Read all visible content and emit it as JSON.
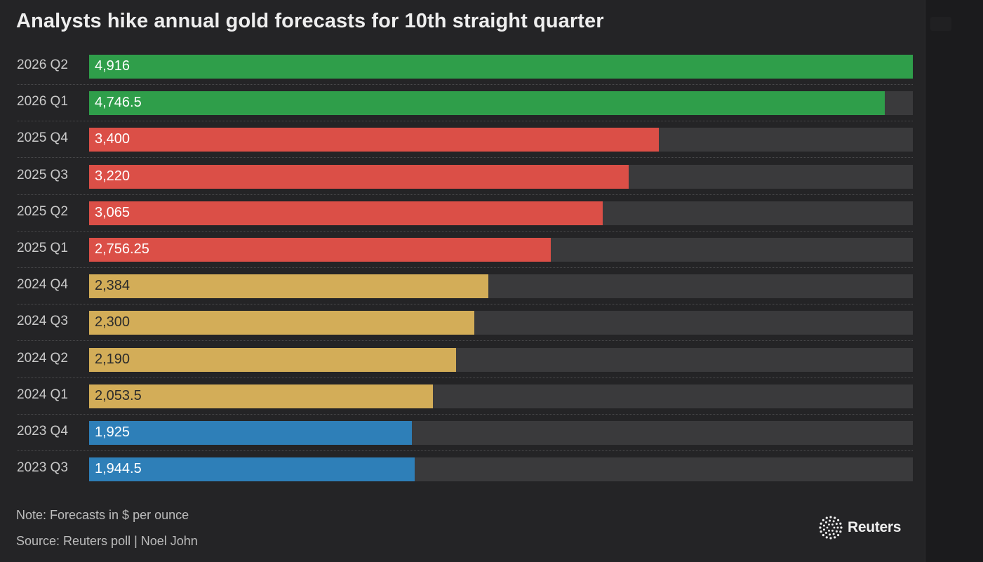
{
  "chart_data": {
    "type": "bar",
    "orientation": "horizontal",
    "title": "Analysts hike annual gold forecasts for 10th straight quarter",
    "xlim": [
      0,
      4916
    ],
    "categories": [
      "2026 Q2",
      "2026 Q1",
      "2025 Q4",
      "2025 Q3",
      "2025 Q2",
      "2025 Q1",
      "2024 Q4",
      "2024 Q3",
      "2024 Q2",
      "2024 Q1",
      "2023 Q4",
      "2023 Q3"
    ],
    "values": [
      4916,
      4746.5,
      3400,
      3220,
      3065,
      2756.25,
      2384,
      2300,
      2190,
      2053.5,
      1925,
      1944.5
    ],
    "value_labels": [
      "4,916",
      "4,746.5",
      "3,400",
      "3,220",
      "3,065",
      "2,756.25",
      "2,384",
      "2,300",
      "2,190",
      "2,053.5",
      "1,925",
      "1,944.5"
    ],
    "bar_colors": [
      "#2f9e4a",
      "#2f9e4a",
      "#db4f47",
      "#db4f47",
      "#db4f47",
      "#db4f47",
      "#d3ad58",
      "#d3ad58",
      "#d3ad58",
      "#d3ad58",
      "#2e7fb8",
      "#2e7fb8"
    ],
    "value_text_colors": [
      "#ffffff",
      "#ffffff",
      "#ffffff",
      "#ffffff",
      "#ffffff",
      "#ffffff",
      "#2b2b2b",
      "#2b2b2b",
      "#2b2b2b",
      "#2b2b2b",
      "#ffffff",
      "#ffffff"
    ],
    "grid": false
  },
  "footer": {
    "note": "Note: Forecasts in $ per ounce",
    "source": "Source: Reuters poll | Noel John",
    "logo_text": "Reuters"
  },
  "colors": {
    "background": "#242426",
    "track": "#3a3a3c",
    "text": "#eeeeee"
  }
}
